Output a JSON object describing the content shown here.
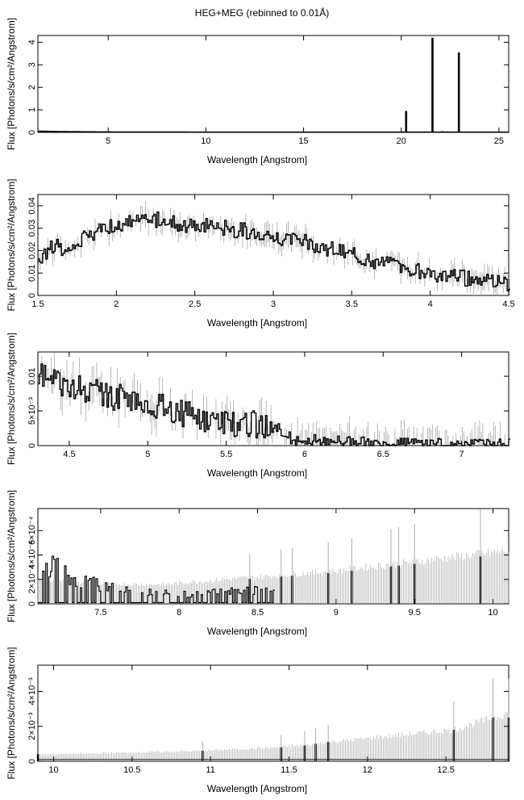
{
  "title": "HEG+MEG (rebinned to 0.01Å)",
  "colors": {
    "data": "#000000",
    "errorbar": "#9a9a9a",
    "frame": "#000000"
  },
  "chart_data": [
    {
      "type": "line",
      "style": "histogram-step",
      "xlabel": "Wavelength [Angstrom]",
      "ylabel": "Flux [Photons/s/cm²/Angstrom]",
      "xlim": [
        1.4,
        25.5
      ],
      "ylim": [
        0,
        4.3
      ],
      "xticks": [
        "5",
        "10",
        "15",
        "20",
        "25"
      ],
      "yticks": [
        "0",
        "1",
        "2",
        "3",
        "4"
      ],
      "series": [
        {
          "x": [
            1.5,
            3.0,
            5.0,
            8.0,
            10.0,
            13.0,
            15.0,
            17.0,
            19.0,
            20.0,
            21.0,
            22.0,
            24.0,
            25.5
          ],
          "y": [
            0.05,
            0.03,
            0.02,
            0.015,
            0.01,
            0.01,
            0.01,
            0.01,
            0.01,
            0.01,
            0.01,
            0.01,
            0.01,
            0.01
          ]
        }
      ],
      "lines": [
        {
          "x": 20.25,
          "y": 0.95
        },
        {
          "x": 21.6,
          "y": 4.2
        },
        {
          "x": 22.1,
          "y": 0.05
        },
        {
          "x": 22.95,
          "y": 3.55
        }
      ]
    },
    {
      "type": "line",
      "style": "histogram-step",
      "xlabel": "Wavelength [Angstrom]",
      "ylabel": "Flux [Photons/s/cm²/Angstrom]",
      "xlim": [
        1.5,
        4.5
      ],
      "ylim": [
        0,
        0.045
      ],
      "xticks": [
        "1.5",
        "2",
        "2.5",
        "3",
        "3.5",
        "4",
        "4.5"
      ],
      "yticks": [
        "0",
        "0.01",
        "0.02",
        "0.03",
        "0.04"
      ],
      "series": [
        {
          "x": [
            1.5,
            1.6,
            1.7,
            1.8,
            1.9,
            2.0,
            2.1,
            2.2,
            2.3,
            2.4,
            2.5,
            2.6,
            2.7,
            2.8,
            2.9,
            3.0,
            3.1,
            3.2,
            3.3,
            3.4,
            3.5,
            3.6,
            3.7,
            3.8,
            3.9,
            4.0,
            4.1,
            4.2,
            4.3,
            4.4,
            4.5
          ],
          "y": [
            0.016,
            0.022,
            0.02,
            0.026,
            0.03,
            0.032,
            0.033,
            0.033,
            0.034,
            0.032,
            0.031,
            0.031,
            0.03,
            0.029,
            0.028,
            0.027,
            0.025,
            0.024,
            0.022,
            0.02,
            0.018,
            0.016,
            0.014,
            0.013,
            0.011,
            0.01,
            0.009,
            0.008,
            0.007,
            0.006,
            0.005
          ],
          "err": 0.004
        }
      ]
    },
    {
      "type": "line",
      "style": "histogram-step",
      "xlabel": "Wavelength [Angstrom]",
      "ylabel": "Flux [Photons/s/cm²/Angstrom]",
      "xlim": [
        4.3,
        7.3
      ],
      "ylim": [
        0,
        0.0135
      ],
      "xticks": [
        "4.5",
        "5",
        "5.5",
        "6",
        "6.5",
        "7"
      ],
      "yticks": [
        "0",
        "5×10⁻³",
        "0.01"
      ],
      "series": [
        {
          "x": [
            4.3,
            4.4,
            4.5,
            4.6,
            4.7,
            4.8,
            4.9,
            5.0,
            5.1,
            5.2,
            5.3,
            5.4,
            5.5,
            5.6,
            5.7,
            5.8,
            5.9,
            6.0,
            6.2,
            6.4,
            6.6,
            6.8,
            7.0,
            7.3
          ],
          "y": [
            0.0105,
            0.0095,
            0.0088,
            0.0082,
            0.0075,
            0.007,
            0.0066,
            0.006,
            0.0055,
            0.0049,
            0.0042,
            0.0038,
            0.0034,
            0.0032,
            0.003,
            0.0026,
            0.0012,
            0.0008,
            0.0006,
            0.0005,
            0.0004,
            0.0004,
            0.0003,
            0.0003
          ],
          "err": 0.002
        }
      ]
    },
    {
      "type": "line",
      "style": "histogram-step",
      "xlabel": "Wavelength [Angstrom]",
      "ylabel": "Flux [Photons/s/cm²/Angstrom]",
      "xlim": [
        7.1,
        10.1
      ],
      "ylim": [
        0,
        0.00078
      ],
      "xticks": [
        "7.5",
        "8",
        "8.5",
        "9",
        "9.5",
        "10"
      ],
      "yticks": [
        "0",
        "2×10⁻⁴",
        "4×10⁻⁴",
        "6×10⁻⁴"
      ],
      "series": [
        {
          "x": [
            7.1,
            7.2,
            7.3,
            7.4,
            7.5,
            7.6,
            7.7,
            7.8,
            7.9,
            8.0,
            8.2,
            8.4,
            8.6,
            8.8,
            9.0,
            9.2,
            9.4,
            9.6,
            9.8,
            10.0,
            10.1
          ],
          "y": [
            0.00018,
            0.0002,
            0.00015,
            0.00012,
            0.0001,
            9e-05,
            8e-05,
            7e-05,
            6e-05,
            5e-05,
            6e-05,
            7e-05,
            8e-05,
            9e-05,
            0.0001,
            0.00012,
            0.00014,
            0.00015,
            0.00016,
            0.00018,
            0.00018
          ],
          "upper": [
            0.0002,
            0.00019,
            0.00018,
            0.00017,
            0.00016,
            0.00016,
            0.00016,
            0.00016,
            0.00016,
            0.00017,
            0.00019,
            0.00021,
            0.00023,
            0.00025,
            0.00027,
            0.0003,
            0.00033,
            0.00036,
            0.00039,
            0.00042,
            0.00044
          ]
        }
      ]
    },
    {
      "type": "line",
      "style": "histogram-step",
      "xlabel": "Wavelength [Angstrom]",
      "ylabel": "Flux [Photons/s/cm²/Angstrom]",
      "xlim": [
        9.9,
        12.9
      ],
      "ylim": [
        0,
        0.0055
      ],
      "xticks": [
        "10",
        "10.5",
        "11",
        "11.5",
        "12",
        "12.5"
      ],
      "yticks": [
        "0",
        "2×10⁻³",
        "4×10⁻³"
      ],
      "series": [
        {
          "x": [
            9.9,
            10.0,
            10.5,
            10.95,
            11.45,
            11.6,
            11.67,
            11.75,
            12.55,
            12.8,
            12.9
          ],
          "y": [
            0.0004,
            0.0001,
            0.0001,
            0.0006,
            0.0008,
            0.0009,
            0.001,
            0.0011,
            0.0018,
            0.0025,
            0.0025
          ],
          "upper": [
            0.0004,
            0.0004,
            0.0005,
            0.0006,
            0.0008,
            0.0009,
            0.001,
            0.0011,
            0.0018,
            0.0025,
            0.0028
          ]
        }
      ]
    }
  ]
}
